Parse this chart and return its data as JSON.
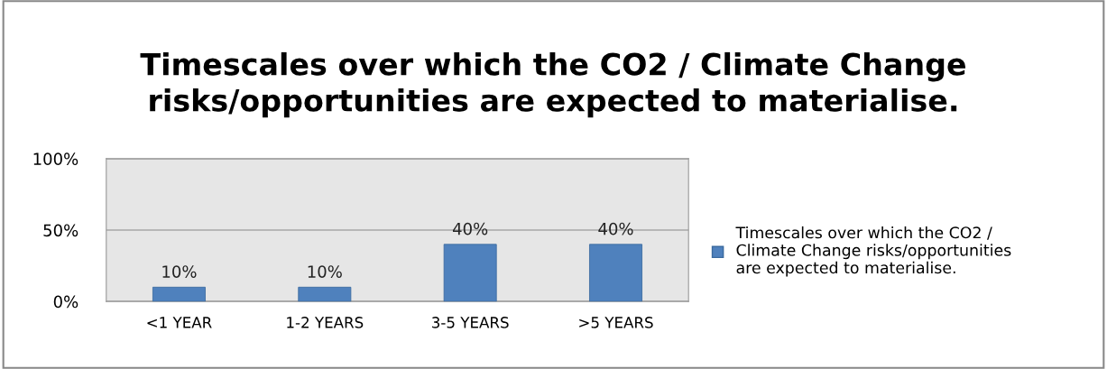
{
  "chart_data": {
    "type": "bar",
    "title": "Timescales over which the CO2 / Climate Change\nrisks/opportunities are expected to materialise.",
    "categories": [
      "<1 YEAR",
      "1-2 YEARS",
      "3-5 YEARS",
      ">5 YEARS"
    ],
    "series": [
      {
        "name": "Timescales over which the CO2 /\nClimate Change risks/opportunities\nare expected to materialise.",
        "color": "#4f81bd",
        "values": [
          10,
          10,
          40,
          40
        ],
        "value_labels": [
          "10%",
          "10%",
          "40%",
          "40%"
        ]
      }
    ],
    "ylim": [
      0,
      100
    ],
    "yticks": [
      {
        "value": 0,
        "label": "0%"
      },
      {
        "value": 50,
        "label": "50%"
      },
      {
        "value": 100,
        "label": "100%"
      }
    ],
    "grid": "y",
    "legend": "right"
  }
}
